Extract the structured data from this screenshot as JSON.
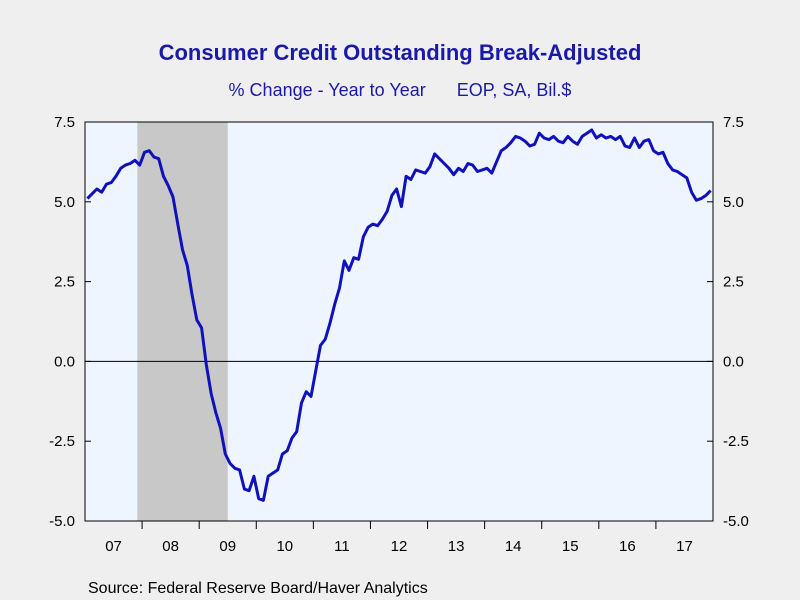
{
  "chart_data": {
    "type": "line",
    "title": "Consumer Credit Outstanding Break-Adjusted",
    "subtitle": "% Change - Year to Year",
    "units": "EOP, SA, Bil.$",
    "source": "Source:  Federal Reserve Board/Haver Analytics",
    "xlabel": "",
    "ylabel": "",
    "ylim": [
      -5.0,
      7.5
    ],
    "yticks": [
      "7.5",
      "5.0",
      "2.5",
      "0.0",
      "-2.5",
      "-5.0"
    ],
    "x_tick_labels": [
      "07",
      "08",
      "09",
      "10",
      "11",
      "12",
      "13",
      "14",
      "15",
      "16",
      "17"
    ],
    "x_range": [
      "2007-01",
      "2017-12"
    ],
    "recession_shading": {
      "start": "2007-12",
      "end": "2009-06"
    },
    "zero_line": true,
    "grid": false,
    "colors": {
      "line": "#1111bb",
      "plot_background": "#eef5ff",
      "page_background": "#efefef",
      "recession": "#c8c8c8",
      "title": "#1a1aa6"
    },
    "series": [
      {
        "x": [
          "2007-01",
          "2007-02",
          "2007-03",
          "2007-04",
          "2007-05",
          "2007-06",
          "2007-07",
          "2007-08",
          "2007-09",
          "2007-10",
          "2007-11",
          "2007-12",
          "2008-01",
          "2008-02",
          "2008-03",
          "2008-04",
          "2008-05",
          "2008-06",
          "2008-07",
          "2008-08",
          "2008-09",
          "2008-10",
          "2008-11",
          "2008-12",
          "2009-01",
          "2009-02",
          "2009-03",
          "2009-04",
          "2009-05",
          "2009-06",
          "2009-07",
          "2009-08",
          "2009-09",
          "2009-10",
          "2009-11",
          "2009-12",
          "2010-01",
          "2010-02",
          "2010-03",
          "2010-04",
          "2010-05",
          "2010-06",
          "2010-07",
          "2010-08",
          "2010-09",
          "2010-10",
          "2010-11",
          "2010-12",
          "2011-01",
          "2011-02",
          "2011-03",
          "2011-04",
          "2011-05",
          "2011-06",
          "2011-07",
          "2011-08",
          "2011-09",
          "2011-10",
          "2011-11",
          "2011-12",
          "2012-01",
          "2012-02",
          "2012-03",
          "2012-04",
          "2012-05",
          "2012-06",
          "2012-07",
          "2012-08",
          "2012-09",
          "2012-10",
          "2012-11",
          "2012-12",
          "2013-01",
          "2013-02",
          "2013-03",
          "2013-04",
          "2013-05",
          "2013-06",
          "2013-07",
          "2013-08",
          "2013-09",
          "2013-10",
          "2013-11",
          "2013-12",
          "2014-01",
          "2014-02",
          "2014-03",
          "2014-04",
          "2014-05",
          "2014-06",
          "2014-07",
          "2014-08",
          "2014-09",
          "2014-10",
          "2014-11",
          "2014-12",
          "2015-01",
          "2015-02",
          "2015-03",
          "2015-04",
          "2015-05",
          "2015-06",
          "2015-07",
          "2015-08",
          "2015-09",
          "2015-10",
          "2015-11",
          "2015-12",
          "2016-01",
          "2016-02",
          "2016-03",
          "2016-04",
          "2016-05",
          "2016-06",
          "2016-07",
          "2016-08",
          "2016-09",
          "2016-10",
          "2016-11",
          "2016-12",
          "2017-01",
          "2017-02",
          "2017-03",
          "2017-04",
          "2017-05",
          "2017-06",
          "2017-07",
          "2017-08",
          "2017-09",
          "2017-10",
          "2017-11",
          "2017-12"
        ],
        "y": [
          5.1,
          5.25,
          5.4,
          5.3,
          5.55,
          5.6,
          5.8,
          6.05,
          6.15,
          6.2,
          6.3,
          6.15,
          6.55,
          6.6,
          6.4,
          6.35,
          5.8,
          5.5,
          5.15,
          4.3,
          3.5,
          3.0,
          2.1,
          1.3,
          1.05,
          -0.1,
          -1.0,
          -1.6,
          -2.1,
          -2.9,
          -3.2,
          -3.35,
          -3.4,
          -4.0,
          -4.05,
          -3.6,
          -4.3,
          -4.35,
          -3.6,
          -3.5,
          -3.4,
          -2.9,
          -2.8,
          -2.4,
          -2.2,
          -1.3,
          -0.95,
          -1.1,
          -0.3,
          0.5,
          0.7,
          1.2,
          1.8,
          2.3,
          3.15,
          2.85,
          3.25,
          3.2,
          3.9,
          4.2,
          4.3,
          4.25,
          4.45,
          4.7,
          5.2,
          5.4,
          4.85,
          5.8,
          5.7,
          6.0,
          5.95,
          5.9,
          6.1,
          6.5,
          6.35,
          6.2,
          6.05,
          5.85,
          6.05,
          5.95,
          6.2,
          6.15,
          5.95,
          6.0,
          6.05,
          5.9,
          6.25,
          6.6,
          6.7,
          6.85,
          7.05,
          7.0,
          6.9,
          6.75,
          6.8,
          7.15,
          7.0,
          6.95,
          7.05,
          6.9,
          6.85,
          7.05,
          6.9,
          6.8,
          7.05,
          7.15,
          7.25,
          7.0,
          7.1,
          7.0,
          7.05,
          6.95,
          7.05,
          6.75,
          6.7,
          7.0,
          6.7,
          6.9,
          6.95,
          6.6,
          6.5,
          6.55,
          6.2,
          6.0,
          5.95,
          5.85,
          5.75,
          5.3,
          5.05,
          5.1,
          5.2,
          5.35
        ]
      }
    ]
  }
}
